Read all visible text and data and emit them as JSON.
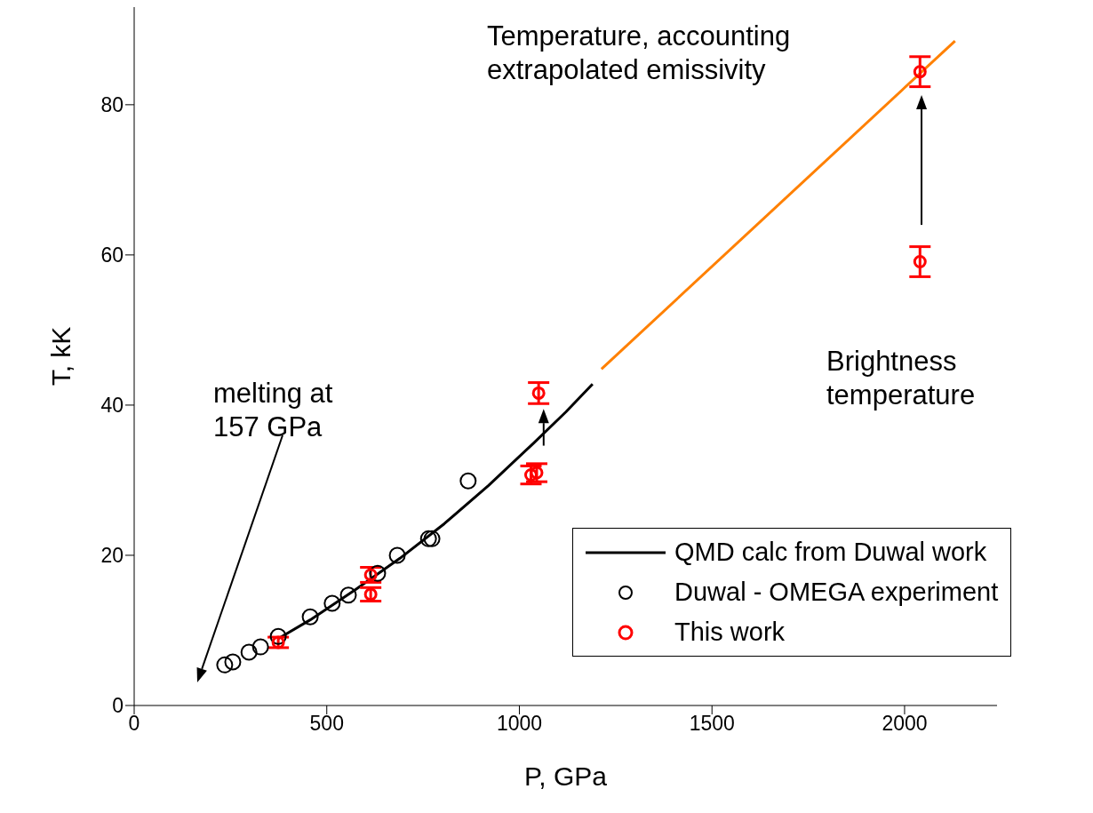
{
  "chart_data": {
    "type": "scatter",
    "xlabel": "P, GPa",
    "ylabel": "T, kK",
    "xlim": [
      0,
      2240
    ],
    "xticks": [
      0,
      500,
      1000,
      1500,
      2000
    ],
    "ylim": [
      0,
      93
    ],
    "yticks": [
      0,
      20,
      40,
      60,
      80
    ],
    "legend": "bottom right",
    "series": [
      {
        "name": "QMD calc from Duwal work",
        "type": "line",
        "color": "#000000",
        "x": [
          374,
          457,
          574,
          690,
          805,
          920,
          1036,
          1121,
          1190
        ],
        "values": [
          8.9,
          11.4,
          15.4,
          19.6,
          24.2,
          29.3,
          34.9,
          39.1,
          42.8
        ]
      },
      {
        "type": "line",
        "color": "#ff8000",
        "x": [
          1213,
          2131
        ],
        "values": [
          44.8,
          88.5
        ]
      },
      {
        "name": "Duwal - OMEGA experiment",
        "marker": "circle",
        "color": "#000000",
        "x": [
          235,
          256,
          298,
          328,
          374,
          457,
          514,
          556,
          632,
          683,
          764,
          773,
          867
        ],
        "values": [
          5.4,
          5.8,
          7.1,
          7.8,
          9.2,
          11.8,
          13.6,
          14.7,
          17.6,
          20.0,
          22.2,
          22.2,
          29.9
        ]
      },
      {
        "name": "This work",
        "marker": "circle",
        "color": "#ff0000",
        "x": [
          374,
          614,
          614,
          1030,
          1045,
          1050,
          2040,
          2040
        ],
        "values": [
          8.4,
          17.4,
          14.8,
          30.7,
          31.0,
          41.6,
          84.4,
          59.1
        ],
        "errors": [
          0.7,
          1.0,
          0.9,
          1.2,
          1.2,
          1.4,
          2.0,
          2.0
        ]
      }
    ],
    "annotations": [
      "melting at 157 GPa",
      "Temperature, accounting extrapolated emissivity",
      "Brightness temperature"
    ]
  }
}
